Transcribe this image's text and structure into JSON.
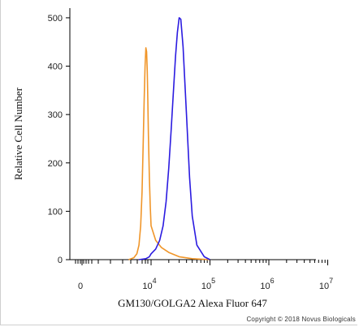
{
  "chart_data": {
    "type": "line",
    "xlabel": "GM130/GOLGA2 Alexa Fluor 647",
    "ylabel": "Relative Cell Number",
    "xscale": "biexponential",
    "ylim": [
      0,
      520
    ],
    "y_ticks": [
      0,
      100,
      200,
      300,
      400,
      500
    ],
    "x_ticks": [
      {
        "value": 0,
        "base": "0",
        "exp": ""
      },
      {
        "value": 10000,
        "base": "10",
        "exp": "4"
      },
      {
        "value": 100000,
        "base": "10",
        "exp": "5"
      },
      {
        "value": 1000000,
        "base": "10",
        "exp": "6"
      },
      {
        "value": 10000000,
        "base": "10",
        "exp": "7"
      }
    ],
    "grid": false,
    "series": [
      {
        "color": "#F0962A",
        "x": [
          500,
          1000,
          1500,
          2000,
          2500,
          3000,
          3500,
          4000,
          4500,
          5000,
          5500,
          6000,
          6500,
          7000,
          8000,
          9000,
          10000,
          12000,
          15000,
          20000,
          30000,
          50000,
          100000
        ],
        "y": [
          0,
          4,
          12,
          30,
          70,
          140,
          240,
          330,
          400,
          438,
          430,
          390,
          330,
          260,
          170,
          110,
          70,
          40,
          25,
          15,
          6,
          2,
          0
        ]
      },
      {
        "color": "#2B1BE0",
        "x": [
          2000,
          5000,
          8000,
          10000,
          12000,
          14000,
          16000,
          18000,
          20000,
          22000,
          24000,
          26000,
          28000,
          30000,
          32000,
          35000,
          40000,
          45000,
          50000,
          60000,
          80000,
          100000
        ],
        "y": [
          0,
          2,
          6,
          12,
          22,
          40,
          70,
          120,
          190,
          270,
          350,
          420,
          470,
          500,
          497,
          440,
          300,
          170,
          90,
          30,
          6,
          0
        ]
      }
    ]
  },
  "copyright": "Copyright © 2018 Novus Biologicals"
}
